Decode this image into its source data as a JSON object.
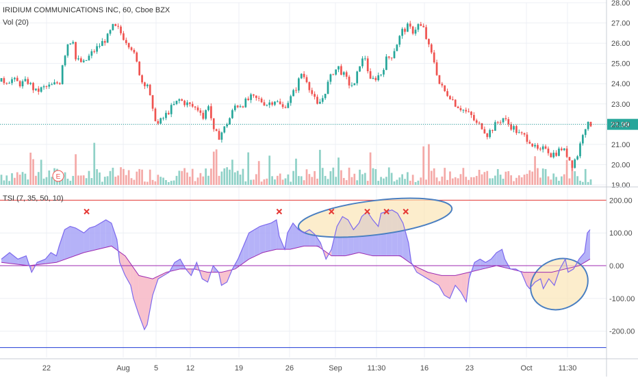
{
  "header": {
    "symbol_title": "IRIDIUM COMMUNICATIONS INC, 60, Cboe BZX",
    "volume_title": "Vol (20)",
    "indicator_title": "TSI (7, 35, 50, 10)"
  },
  "colors": {
    "up": "#26a69a",
    "down": "#ef5350",
    "vol_up": "#8fd1c7",
    "vol_down": "#f4a9a7",
    "tsi_line": "#7b68ee",
    "signal_line": "#9c27b0",
    "fill_pos": "#a8a4f7",
    "fill_neg": "#f7b7c6",
    "upper_level": "#e53935",
    "lower_level": "#1e3ad6",
    "zero_level": "#9c27b0",
    "last_price_bg": "#26a69a",
    "annotation_stroke": "#4a7fc1",
    "annotation_fill": "#fbe5b6",
    "grid": "#eceff4",
    "axis_text": "#4a4a4a"
  },
  "chart_data": [
    {
      "type": "candlestick",
      "title": "IRIDIUM COMMUNICATIONS INC, 60, Cboe BZX",
      "x_ticks": [
        "22",
        "Aug",
        "5",
        "12",
        "19",
        "26",
        "Sep",
        "11:30",
        "16",
        "23",
        "Oct",
        "11:30"
      ],
      "y_ticks": [
        "19.00",
        "20.00",
        "21.00",
        "22.00",
        "23.00",
        "24.00",
        "25.00",
        "26.00",
        "27.00",
        "28.00"
      ],
      "ylim": [
        19.0,
        28.0
      ],
      "last_price": "21.99",
      "earnings_marker": "E",
      "close_path": [
        [
          0,
          24.1
        ],
        [
          4,
          24.2
        ],
        [
          7,
          24.0
        ],
        [
          10,
          24.1
        ],
        [
          13,
          23.6
        ],
        [
          16,
          23.8
        ],
        [
          19,
          23.9
        ],
        [
          22,
          24.1
        ],
        [
          23,
          25.0
        ],
        [
          25,
          26.0
        ],
        [
          27,
          26.2
        ],
        [
          28,
          25.2
        ],
        [
          31,
          25.0
        ],
        [
          34,
          25.5
        ],
        [
          37,
          25.9
        ],
        [
          40,
          26.3
        ],
        [
          42,
          26.8
        ],
        [
          44,
          26.7
        ],
        [
          46,
          26.3
        ],
        [
          49,
          25.8
        ],
        [
          51,
          25.0
        ],
        [
          53,
          24.1
        ],
        [
          55,
          24.0
        ],
        [
          57,
          22.6
        ],
        [
          59,
          22.0
        ],
        [
          61,
          22.3
        ],
        [
          64,
          22.8
        ],
        [
          67,
          23.2
        ],
        [
          70,
          23.0
        ],
        [
          73,
          22.8
        ],
        [
          75,
          22.7
        ],
        [
          76,
          22.3
        ],
        [
          78,
          23.0
        ],
        [
          80,
          21.6
        ],
        [
          82,
          21.4
        ],
        [
          84,
          21.8
        ],
        [
          86,
          22.3
        ],
        [
          88,
          22.9
        ],
        [
          91,
          23.0
        ],
        [
          94,
          23.3
        ],
        [
          97,
          23.2
        ],
        [
          100,
          23.0
        ],
        [
          103,
          23.2
        ],
        [
          106,
          22.8
        ],
        [
          109,
          23.3
        ],
        [
          111,
          23.8
        ],
        [
          113,
          24.5
        ],
        [
          115,
          24.2
        ],
        [
          117,
          23.5
        ],
        [
          119,
          22.9
        ],
        [
          121,
          23.3
        ],
        [
          123,
          24.0
        ],
        [
          125,
          24.6
        ],
        [
          127,
          24.8
        ],
        [
          129,
          24.4
        ],
        [
          131,
          24.0
        ],
        [
          133,
          23.9
        ],
        [
          135,
          25.0
        ],
        [
          137,
          25.3
        ],
        [
          139,
          24.1
        ],
        [
          141,
          24.3
        ],
        [
          143,
          24.5
        ],
        [
          145,
          25.2
        ],
        [
          147,
          25.4
        ],
        [
          149,
          26.0
        ],
        [
          151,
          26.6
        ],
        [
          153,
          26.8
        ],
        [
          155,
          26.6
        ],
        [
          157,
          26.9
        ],
        [
          159,
          26.7
        ],
        [
          161,
          25.8
        ],
        [
          163,
          25.1
        ],
        [
          165,
          24.0
        ],
        [
          167,
          23.6
        ],
        [
          169,
          23.4
        ],
        [
          171,
          23.0
        ],
        [
          173,
          22.8
        ],
        [
          175,
          22.6
        ],
        [
          177,
          22.4
        ],
        [
          179,
          22.0
        ],
        [
          181,
          21.9
        ],
        [
          183,
          21.5
        ],
        [
          185,
          21.8
        ],
        [
          187,
          22.1
        ],
        [
          189,
          22.3
        ],
        [
          191,
          22.0
        ],
        [
          193,
          21.8
        ],
        [
          195,
          21.5
        ],
        [
          197,
          21.4
        ],
        [
          199,
          21.2
        ],
        [
          201,
          20.8
        ],
        [
          203,
          20.6
        ],
        [
          205,
          20.9
        ],
        [
          207,
          20.5
        ],
        [
          209,
          20.6
        ],
        [
          211,
          20.8
        ],
        [
          213,
          20.5
        ],
        [
          215,
          20.0
        ],
        [
          217,
          20.5
        ],
        [
          218,
          21.0
        ],
        [
          219,
          21.6
        ],
        [
          220,
          21.9
        ],
        [
          222,
          22.0
        ]
      ]
    },
    {
      "type": "bar",
      "title": "Vol (20)",
      "note": "volume bars in the price pane, no numeric axis"
    },
    {
      "type": "area",
      "title": "TSI (7, 35, 50, 10)",
      "y_ticks": [
        "200.00",
        "100.00",
        "0.00",
        "-100.00",
        "-200.00"
      ],
      "ylim": [
        -280,
        230
      ],
      "levels": [
        200,
        0,
        -250
      ],
      "tsi": [
        [
          0,
          20
        ],
        [
          3,
          40
        ],
        [
          6,
          20
        ],
        [
          9,
          30
        ],
        [
          11,
          -20
        ],
        [
          13,
          10
        ],
        [
          16,
          20
        ],
        [
          18,
          40
        ],
        [
          20,
          30
        ],
        [
          21,
          60
        ],
        [
          23,
          110
        ],
        [
          25,
          120
        ],
        [
          27,
          115
        ],
        [
          30,
          100
        ],
        [
          32,
          115
        ],
        [
          34,
          120
        ],
        [
          36,
          130
        ],
        [
          38,
          140
        ],
        [
          40,
          130
        ],
        [
          42,
          80
        ],
        [
          43,
          10
        ],
        [
          45,
          -30
        ],
        [
          47,
          -60
        ],
        [
          48,
          -100
        ],
        [
          50,
          -150
        ],
        [
          52,
          -195
        ],
        [
          53,
          -180
        ],
        [
          55,
          -90
        ],
        [
          57,
          -40
        ],
        [
          59,
          -30
        ],
        [
          61,
          -20
        ],
        [
          63,
          10
        ],
        [
          65,
          20
        ],
        [
          67,
          -10
        ],
        [
          69,
          -30
        ],
        [
          71,
          10
        ],
        [
          73,
          -40
        ],
        [
          75,
          -50
        ],
        [
          77,
          0
        ],
        [
          79,
          -20
        ],
        [
          80,
          -60
        ],
        [
          82,
          -50
        ],
        [
          84,
          -10
        ],
        [
          86,
          20
        ],
        [
          88,
          60
        ],
        [
          90,
          100
        ],
        [
          92,
          110
        ],
        [
          94,
          120
        ],
        [
          96,
          125
        ],
        [
          98,
          130
        ],
        [
          100,
          140
        ],
        [
          101,
          90
        ],
        [
          103,
          50
        ],
        [
          104,
          100
        ],
        [
          106,
          130
        ],
        [
          108,
          110
        ],
        [
          110,
          100
        ],
        [
          112,
          110
        ],
        [
          114,
          95
        ],
        [
          116,
          70
        ],
        [
          118,
          20
        ],
        [
          120,
          50
        ],
        [
          122,
          120
        ],
        [
          124,
          150
        ],
        [
          126,
          140
        ],
        [
          128,
          110
        ],
        [
          130,
          130
        ],
        [
          131,
          150
        ],
        [
          133,
          165
        ],
        [
          135,
          140
        ],
        [
          137,
          120
        ],
        [
          138,
          160
        ],
        [
          140,
          165
        ],
        [
          142,
          170
        ],
        [
          144,
          160
        ],
        [
          146,
          130
        ],
        [
          148,
          70
        ],
        [
          149,
          10
        ],
        [
          151,
          -20
        ],
        [
          153,
          -30
        ],
        [
          155,
          -40
        ],
        [
          157,
          -50
        ],
        [
          159,
          -60
        ],
        [
          161,
          -90
        ],
        [
          163,
          -100
        ],
        [
          165,
          -60
        ],
        [
          167,
          -80
        ],
        [
          169,
          -110
        ],
        [
          170,
          -40
        ],
        [
          172,
          10
        ],
        [
          174,
          20
        ],
        [
          176,
          10
        ],
        [
          178,
          20
        ],
        [
          180,
          40
        ],
        [
          182,
          50
        ],
        [
          183,
          20
        ],
        [
          185,
          -10
        ],
        [
          187,
          -10
        ],
        [
          189,
          -20
        ],
        [
          191,
          -60
        ],
        [
          192,
          -70
        ],
        [
          194,
          -50
        ],
        [
          196,
          -40
        ],
        [
          197,
          -70
        ],
        [
          199,
          -40
        ],
        [
          201,
          -60
        ],
        [
          203,
          -10
        ],
        [
          205,
          20
        ],
        [
          206,
          -20
        ],
        [
          208,
          -10
        ],
        [
          210,
          20
        ],
        [
          212,
          40
        ],
        [
          213,
          100
        ],
        [
          214,
          110
        ]
      ],
      "signal": [
        [
          0,
          10
        ],
        [
          10,
          0
        ],
        [
          20,
          10
        ],
        [
          30,
          40
        ],
        [
          40,
          60
        ],
        [
          45,
          30
        ],
        [
          50,
          -30
        ],
        [
          55,
          -40
        ],
        [
          60,
          -20
        ],
        [
          65,
          -10
        ],
        [
          70,
          -10
        ],
        [
          75,
          -20
        ],
        [
          80,
          -20
        ],
        [
          85,
          -10
        ],
        [
          90,
          20
        ],
        [
          95,
          40
        ],
        [
          100,
          50
        ],
        [
          105,
          50
        ],
        [
          110,
          60
        ],
        [
          115,
          60
        ],
        [
          120,
          30
        ],
        [
          125,
          30
        ],
        [
          130,
          40
        ],
        [
          135,
          30
        ],
        [
          140,
          30
        ],
        [
          145,
          30
        ],
        [
          150,
          0
        ],
        [
          155,
          -20
        ],
        [
          160,
          -30
        ],
        [
          165,
          -30
        ],
        [
          170,
          -20
        ],
        [
          175,
          -10
        ],
        [
          180,
          0
        ],
        [
          185,
          -10
        ],
        [
          190,
          -20
        ],
        [
          195,
          -20
        ],
        [
          200,
          -20
        ],
        [
          205,
          -10
        ],
        [
          210,
          0
        ],
        [
          214,
          20
        ]
      ],
      "cross_markers_x": [
        31,
        101,
        120,
        133,
        140,
        147
      ]
    }
  ]
}
